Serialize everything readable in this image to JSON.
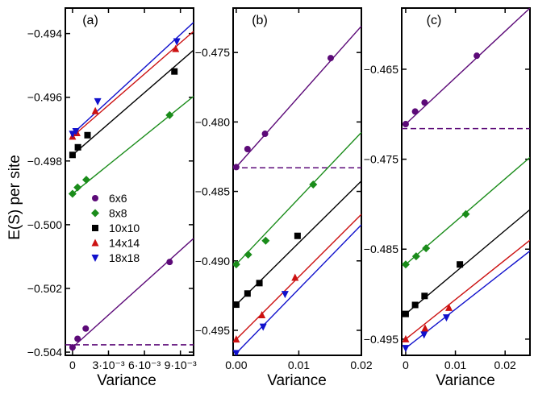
{
  "chart_data": [
    {
      "type": "scatter",
      "panel_label": "(a)",
      "xlabel": "Variance",
      "ylabel": "E(S) per site",
      "xlim": [
        -0.0006,
        0.0101
      ],
      "ylim": [
        -0.5041,
        -0.4932
      ],
      "xticks": [
        0,
        0.003,
        0.006,
        0.009
      ],
      "xtick_labels": [
        "0",
        "3·10⁻³",
        "6·10⁻³",
        "9·10⁻³"
      ],
      "yticks": [
        -0.504,
        -0.502,
        -0.5,
        -0.498,
        -0.496,
        -0.494
      ],
      "ytick_labels": [
        "−0.504",
        "−0.502",
        "−0.500",
        "−0.498",
        "−0.496",
        "−0.494"
      ],
      "legend_placement": "left",
      "series": [
        {
          "name": "6x6",
          "color": "#5c0a78",
          "marker": "circle",
          "x": [
            0.0,
            0.00042,
            0.0011,
            0.0081
          ],
          "y": [
            -0.50385,
            -0.50358,
            -0.50326,
            -0.50117
          ],
          "fit": {
            "x": [
              0.0,
              0.0101
            ],
            "y": [
              -0.50385,
              -0.50043
            ]
          }
        },
        {
          "name": "8x8",
          "color": "#1a8c1a",
          "marker": "diamond",
          "x": [
            0.0,
            0.00042,
            0.00115,
            0.0081
          ],
          "y": [
            -0.49903,
            -0.49883,
            -0.49859,
            -0.49656
          ],
          "fit": {
            "x": [
              0.0,
              0.0101
            ],
            "y": [
              -0.49903,
              -0.49597
            ]
          }
        },
        {
          "name": "10x10",
          "color": "#000000",
          "marker": "square",
          "x": [
            0.0,
            0.00045,
            0.00125,
            0.0085
          ],
          "y": [
            -0.49781,
            -0.49757,
            -0.49719,
            -0.49519
          ],
          "fit": {
            "x": [
              0.0,
              0.0101
            ],
            "y": [
              -0.49781,
              -0.49452
            ]
          }
        },
        {
          "name": "14x14",
          "color": "#cc1111",
          "marker": "triangle-up",
          "x": [
            0.0,
            0.00037,
            0.0019,
            0.0086
          ],
          "y": [
            -0.49723,
            -0.49712,
            -0.49643,
            -0.49448
          ],
          "fit": {
            "x": [
              0.0,
              0.0101
            ],
            "y": [
              -0.49723,
              -0.49393
            ]
          }
        },
        {
          "name": "18x18",
          "color": "#1111cc",
          "marker": "triangle-down",
          "x": [
            0.0,
            0.00028,
            0.0021,
            0.0087
          ],
          "y": [
            -0.49715,
            -0.49707,
            -0.49613,
            -0.49425
          ],
          "fit": {
            "x": [
              0.0,
              0.0101
            ],
            "y": [
              -0.49715,
              -0.49365
            ]
          }
        }
      ],
      "reference_line": {
        "y": -0.50377,
        "color": "#5c0a78",
        "style": "dashed"
      }
    },
    {
      "type": "scatter",
      "panel_label": "(b)",
      "xlabel": "Variance",
      "ylabel": "",
      "xlim": [
        -0.0005,
        0.02
      ],
      "ylim": [
        -0.4968,
        -0.4718
      ],
      "xticks": [
        0,
        0.01,
        0.02
      ],
      "xtick_labels": [
        "0.00",
        "0.01",
        "0.02"
      ],
      "yticks": [
        -0.495,
        -0.49,
        -0.485,
        -0.48,
        -0.475
      ],
      "ytick_labels": [
        "−0.495",
        "−0.490",
        "−0.485",
        "−0.480",
        "−0.475"
      ],
      "series": [
        {
          "name": "6x6",
          "color": "#5c0a78",
          "marker": "circle",
          "x": [
            0.0,
            0.0018,
            0.0046,
            0.0151
          ],
          "y": [
            -0.48325,
            -0.48195,
            -0.48085,
            -0.4754
          ],
          "fit": {
            "x": [
              0.0,
              0.02
            ],
            "y": [
              -0.48325,
              -0.4731
            ]
          }
        },
        {
          "name": "8x8",
          "color": "#1a8c1a",
          "marker": "diamond",
          "x": [
            0.0,
            0.0019,
            0.0047,
            0.0123
          ],
          "y": [
            -0.49025,
            -0.48955,
            -0.48855,
            -0.4845
          ],
          "fit": {
            "x": [
              0.0,
              0.02
            ],
            "y": [
              -0.49025,
              -0.48075
            ]
          }
        },
        {
          "name": "10x10",
          "color": "#000000",
          "marker": "square",
          "x": [
            0.0,
            0.0018,
            0.0037,
            0.0098
          ],
          "y": [
            -0.49315,
            -0.49235,
            -0.4916,
            -0.4882
          ],
          "fit": {
            "x": [
              0.0,
              0.02
            ],
            "y": [
              -0.49315,
              -0.48425
            ]
          }
        },
        {
          "name": "14x14",
          "color": "#cc1111",
          "marker": "triangle-up",
          "x": [
            0.0,
            0.0041,
            0.0094
          ],
          "y": [
            -0.49565,
            -0.4939,
            -0.4912
          ],
          "fit": {
            "x": [
              0.0,
              0.02
            ],
            "y": [
              -0.49565,
              -0.48665
            ]
          }
        },
        {
          "name": "18x18",
          "color": "#1111cc",
          "marker": "triangle-down",
          "x": [
            0.0,
            0.0043,
            0.0078
          ],
          "y": [
            -0.49665,
            -0.49475,
            -0.4924
          ],
          "fit": {
            "x": [
              0.0,
              0.02
            ],
            "y": [
              -0.49665,
              -0.4874
            ]
          }
        }
      ],
      "reference_line": {
        "y": -0.4833,
        "color": "#5c0a78",
        "style": "dashed"
      }
    },
    {
      "type": "scatter",
      "panel_label": "(c)",
      "xlabel": "Variance",
      "ylabel": "",
      "xlim": [
        -0.0008,
        0.025
      ],
      "ylim": [
        -0.4968,
        -0.4582
      ],
      "xticks": [
        0,
        0.01,
        0.02
      ],
      "xtick_labels": [
        "0",
        "0.01",
        "0.02"
      ],
      "yticks": [
        -0.495,
        -0.485,
        -0.475,
        -0.465
      ],
      "ytick_labels": [
        "−0.495",
        "−0.485",
        "−0.475",
        "−0.465"
      ],
      "series": [
        {
          "name": "6x6",
          "color": "#5c0a78",
          "marker": "circle",
          "x": [
            0.0,
            0.0019,
            0.0038,
            0.0143
          ],
          "y": [
            -0.4711,
            -0.4697,
            -0.4687,
            -0.4635
          ],
          "fit": {
            "x": [
              0.0,
              0.025
            ],
            "y": [
              -0.4711,
              -0.4582
            ]
          }
        },
        {
          "name": "8x8",
          "color": "#1a8c1a",
          "marker": "diamond",
          "x": [
            0.0,
            0.0021,
            0.0041,
            0.0121
          ],
          "y": [
            -0.4867,
            -0.4858,
            -0.4849,
            -0.4811
          ],
          "fit": {
            "x": [
              0.0,
              0.025
            ],
            "y": [
              -0.4867,
              -0.4748
            ]
          }
        },
        {
          "name": "10x10",
          "color": "#000000",
          "marker": "square",
          "x": [
            0.0,
            0.0019,
            0.0038,
            0.0109
          ],
          "y": [
            -0.4922,
            -0.4912,
            -0.4902,
            -0.4867
          ],
          "fit": {
            "x": [
              0.0,
              0.025
            ],
            "y": [
              -0.4922,
              -0.4806
            ]
          }
        },
        {
          "name": "14x14",
          "color": "#cc1111",
          "marker": "triangle-up",
          "x": [
            0.0,
            0.0039,
            0.0087
          ],
          "y": [
            -0.495,
            -0.4938,
            -0.4915
          ],
          "fit": {
            "x": [
              0.0,
              0.025
            ],
            "y": [
              -0.495,
              -0.484
            ]
          }
        },
        {
          "name": "18x18",
          "color": "#1111cc",
          "marker": "triangle-down",
          "x": [
            0.0,
            0.0037,
            0.0082
          ],
          "y": [
            -0.496,
            -0.4945,
            -0.4926
          ],
          "fit": {
            "x": [
              0.0,
              0.025
            ],
            "y": [
              -0.496,
              -0.4852
            ]
          }
        }
      ],
      "reference_line": {
        "y": -0.4716,
        "color": "#5c0a78",
        "style": "dashed"
      }
    }
  ]
}
